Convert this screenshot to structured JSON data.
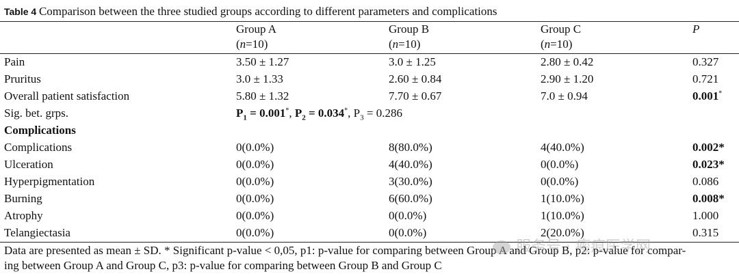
{
  "caption": {
    "table_no": "Table 4",
    "title": "Comparison between the three studied groups according to different parameters and complications"
  },
  "header": {
    "group_a": "Group A",
    "group_a_n_prefix": "(",
    "group_a_n_var": "n",
    "group_a_n_rest": "=10)",
    "group_b": "Group B",
    "group_b_n_prefix": "(",
    "group_b_n_var": "n",
    "group_b_n_rest": "=10)",
    "group_c": "Group C",
    "group_c_n_prefix": "(",
    "group_c_n_var": "n",
    "group_c_n_rest": "=10)",
    "p": "P"
  },
  "rows": [
    {
      "label": "Pain",
      "a": "3.50 ± 1.27",
      "b": "3.0 ± 1.25",
      "c": "2.80 ± 0.42",
      "p": "0.327",
      "p_mark": ""
    },
    {
      "label": "Pruritus",
      "a": "3.0 ± 1.33",
      "b": "2.60 ± 0.84",
      "c": "2.90 ± 1.20",
      "p": "0.721",
      "p_mark": ""
    },
    {
      "label": "Overall patient satisfaction",
      "a": "5.80 ± 1.32",
      "b": "7.70 ± 0.67",
      "c": "7.0 ± 0.94",
      "p": "0.001",
      "p_mark": "*"
    }
  ],
  "sig": {
    "label": "Sig. bet. grps.",
    "p1_name": "P",
    "p1_sub": "1",
    "p1_val": " = 0.001",
    "p1_mark": "*",
    "sep1": ", ",
    "p2_name": "P",
    "p2_sub": "2",
    "p2_val": " = 0.034",
    "p2_mark": "*",
    "sep2": ", ",
    "p3_name": "P",
    "p3_sub": "3",
    "p3_val": " = 0.286"
  },
  "complications_heading": "Complications",
  "comp_rows": [
    {
      "label": "Complications",
      "a": "0(0.0%)",
      "b": "8(80.0%)",
      "c": "4(40.0%)",
      "p": "0.002*",
      "bold": true
    },
    {
      "label": "Ulceration",
      "a": "0(0.0%)",
      "b": "4(40.0%)",
      "c": "0(0.0%)",
      "p": "0.023*",
      "bold": true
    },
    {
      "label": "Hyperpigmentation",
      "a": "0(0.0%)",
      "b": "3(30.0%)",
      "c": "0(0.0%)",
      "p": "0.086",
      "bold": false
    },
    {
      "label": "Burning",
      "a": "0(0.0%)",
      "b": "6(60.0%)",
      "c": "1(10.0%)",
      "p": "0.008*",
      "bold": true
    },
    {
      "label": "Atrophy",
      "a": "0(0.0%)",
      "b": "0(0.0%)",
      "c": "1(10.0%)",
      "p": "1.000",
      "bold": false
    },
    {
      "label": "Telangiectasia",
      "a": "0(0.0%)",
      "b": "0(0.0%)",
      "c": "2(20.0%)",
      "p": "0.315",
      "bold": false
    }
  ],
  "footnote": {
    "line1": "Data are presented as mean ± SD. * Significant p-value < 0,05, p1: p-value for comparing between Group A and Group B, p2: p-value for compar-",
    "line2": "ing between Group A and Group C, p3: p-value for comparing between Group B and Group C"
  },
  "watermark": "服务号 · 瘢痕医学网"
}
